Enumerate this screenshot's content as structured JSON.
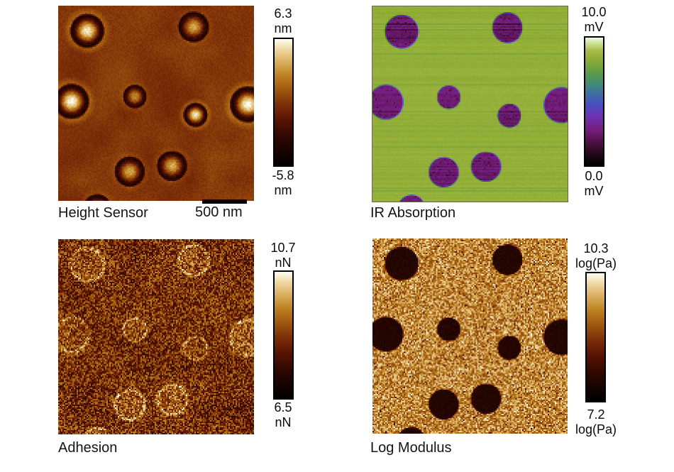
{
  "figure": {
    "background": "#ffffff",
    "text_color": "#141414"
  },
  "panels": [
    {
      "title": "Height Sensor",
      "render_style": "height",
      "colormap": "amber",
      "seed": 11,
      "background_level": 0.5,
      "colorbar": {
        "max_value": "6.3",
        "max_unit": "nm",
        "min_value": "-5.8",
        "min_unit": "nm"
      },
      "scale_bar": {
        "label": "500 nm"
      }
    },
    {
      "title": "IR Absorption",
      "render_style": "ir",
      "colormap": "ir",
      "seed": 22,
      "background_level": 0.845,
      "colorbar": {
        "max_value": "10.0",
        "max_unit": "mV",
        "min_value": "0.0",
        "min_unit": "mV"
      }
    },
    {
      "title": "Adhesion",
      "render_style": "adhesion",
      "colormap": "amber",
      "seed": 33,
      "background_level": 0.46,
      "colorbar": {
        "max_value": "10.7",
        "max_unit": "nN",
        "min_value": "6.5",
        "min_unit": "nN"
      }
    },
    {
      "title": "Log Modulus",
      "render_style": "modulus",
      "colormap": "amber",
      "seed": 44,
      "background_level": 0.72,
      "colorbar": {
        "max_value": "10.3",
        "max_unit": "log(Pa)",
        "min_value": "7.2",
        "min_unit": "log(Pa)"
      }
    }
  ],
  "domains": [
    {
      "x": 0.145,
      "y": 0.125,
      "r": 0.09,
      "peak": 0.97
    },
    {
      "x": 0.688,
      "y": 0.105,
      "r": 0.082,
      "peak": 0.8
    },
    {
      "x": 0.065,
      "y": 0.487,
      "r": 0.093,
      "peak": 1.0
    },
    {
      "x": 0.388,
      "y": 0.462,
      "r": 0.063,
      "peak": 0.74
    },
    {
      "x": 0.698,
      "y": 0.556,
      "r": 0.064,
      "peak": 0.96
    },
    {
      "x": 0.966,
      "y": 0.502,
      "r": 0.096,
      "peak": 1.0
    },
    {
      "x": 0.362,
      "y": 0.847,
      "r": 0.081,
      "peak": 0.8
    },
    {
      "x": 0.578,
      "y": 0.818,
      "r": 0.081,
      "peak": 0.82
    },
    {
      "x": 0.196,
      "y": 1.035,
      "r": 0.076,
      "peak": 0.74
    }
  ],
  "colormaps": {
    "amber": [
      [
        0.0,
        "#000000"
      ],
      [
        0.2,
        "#2a0701"
      ],
      [
        0.35,
        "#551103"
      ],
      [
        0.48,
        "#7c2f08"
      ],
      [
        0.6,
        "#a0580f"
      ],
      [
        0.72,
        "#bf8524"
      ],
      [
        0.83,
        "#dcb266"
      ],
      [
        0.92,
        "#efd8a4"
      ],
      [
        1.0,
        "#fffdf0"
      ]
    ],
    "ir": [
      [
        0.0,
        "#000000"
      ],
      [
        0.08,
        "#1e0818"
      ],
      [
        0.18,
        "#4c1044"
      ],
      [
        0.28,
        "#761e7e"
      ],
      [
        0.38,
        "#6e30b4"
      ],
      [
        0.47,
        "#4a4cc0"
      ],
      [
        0.56,
        "#3e6ea4"
      ],
      [
        0.64,
        "#418c74"
      ],
      [
        0.73,
        "#5f9c46"
      ],
      [
        0.83,
        "#8fac34"
      ],
      [
        0.9,
        "#a8bc4c"
      ],
      [
        0.96,
        "#cfe49a"
      ],
      [
        1.0,
        "#eefcf2"
      ]
    ]
  }
}
